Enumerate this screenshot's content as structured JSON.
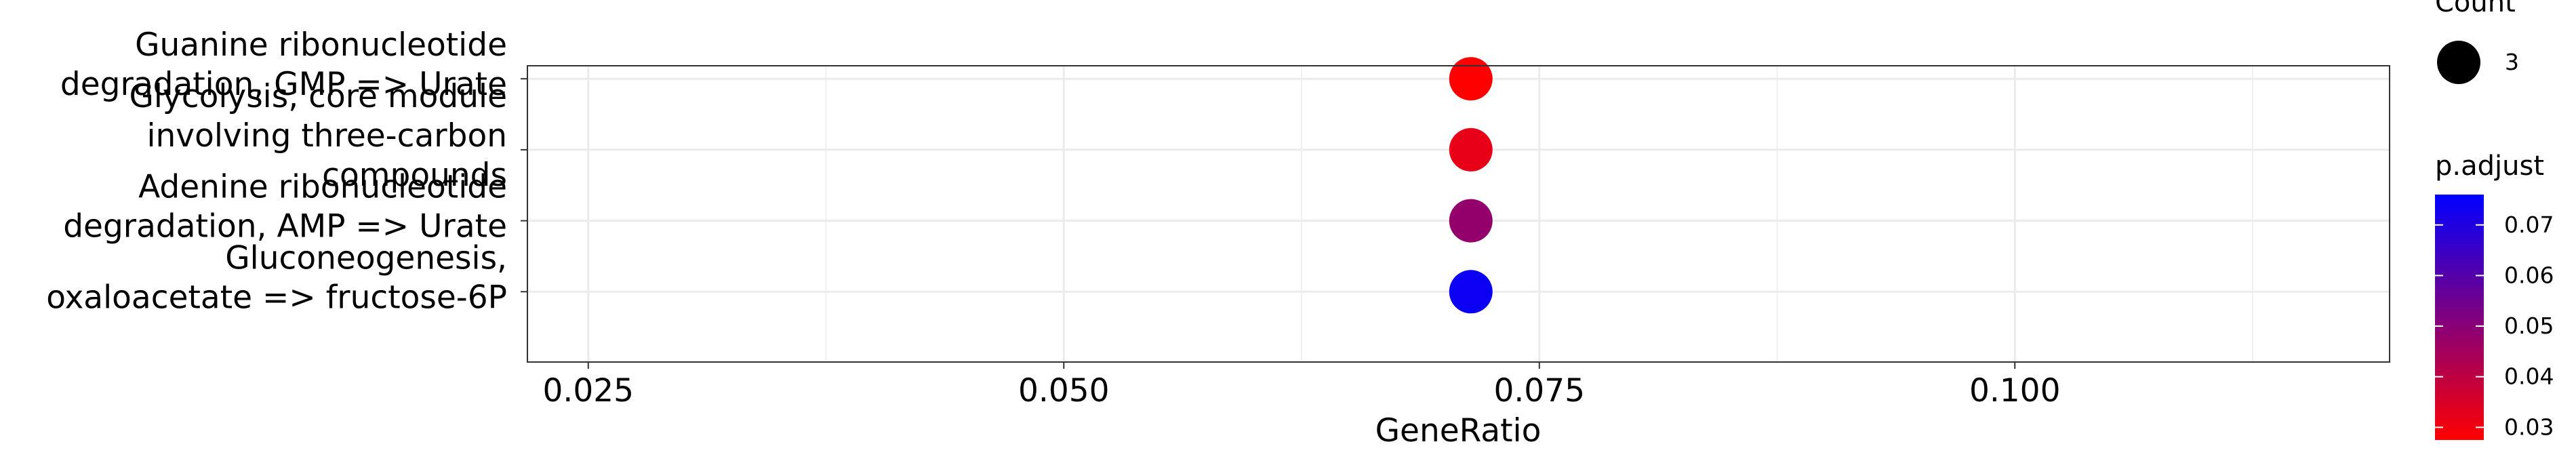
{
  "chart_data": {
    "type": "scatter",
    "xlabel": "GeneRatio",
    "xlim": [
      0.0218,
      0.1197
    ],
    "x_ticks": [
      "0.025",
      "0.050",
      "0.075",
      "0.100"
    ],
    "x_tick_values": [
      0.025,
      0.05,
      0.075,
      0.1
    ],
    "categories": [
      [
        "Guanine ribonucleotide",
        "degradation, GMP => Urate"
      ],
      [
        "Glycolysis, core module",
        "involving three-carbon",
        "compounds"
      ],
      [
        "Adenine ribonucleotide",
        "degradation, AMP => Urate"
      ],
      [
        "Gluconeogenesis,",
        "oxaloacetate => fructose-6P"
      ]
    ],
    "points": [
      {
        "x": 0.0714,
        "count": 3,
        "p_adjust": 0.0275
      },
      {
        "x": 0.0714,
        "count": 3,
        "p_adjust": 0.032
      },
      {
        "x": 0.0714,
        "count": 3,
        "p_adjust": 0.048
      },
      {
        "x": 0.0714,
        "count": 3,
        "p_adjust": 0.074
      }
    ],
    "grid": true,
    "legend_size": {
      "title": "Count",
      "items": [
        {
          "label": "3",
          "value": 3
        }
      ]
    },
    "legend_color": {
      "title": "p.adjust",
      "range": [
        0.0275,
        0.076
      ],
      "ticks": [
        "0.03",
        "0.04",
        "0.05",
        "0.06",
        "0.07"
      ],
      "tick_values": [
        0.03,
        0.04,
        0.05,
        0.06,
        0.07
      ],
      "low_color": "#FF0000",
      "high_color": "#0000FF"
    }
  }
}
